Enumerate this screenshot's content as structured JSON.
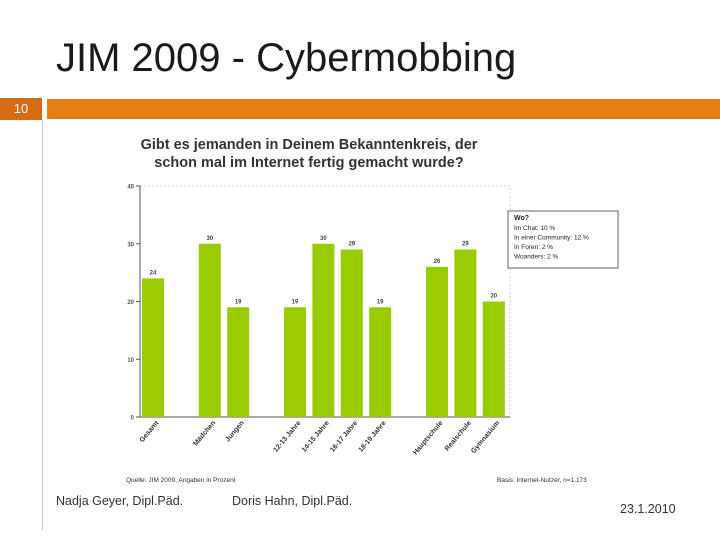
{
  "slide": {
    "title": "JIM 2009 - Cybermobbing",
    "number": "10",
    "accent_color": "#e67e16"
  },
  "footer": {
    "author1": "Nadja Geyer, Dipl.Päd.",
    "author2": "Doris Hahn, Dipl.Päd.",
    "date": "23.1.2010"
  },
  "chart_data": {
    "type": "bar",
    "title_lines": [
      "Gibt es jemanden in Deinem Bekanntenkreis, der",
      "schon mal im Internet fertig gemacht wurde?"
    ],
    "categories": [
      "Gesamt",
      "Mädchen",
      "Jungen",
      "12-13 Jahre",
      "14-15 Jahre",
      "16-17 Jahre",
      "18-19 Jahre",
      "Hauptschule",
      "Realschule",
      "Gymnasium"
    ],
    "values": [
      24,
      30,
      19,
      19,
      30,
      29,
      19,
      26,
      29,
      20
    ],
    "ylim": [
      0,
      40
    ],
    "yticks": [
      0,
      10,
      20,
      30,
      40
    ],
    "grid": false,
    "bar_color": "#99cc00",
    "legend_box": {
      "title": "Wo?",
      "lines": [
        "Im Chat: 10 %",
        "In einer Community: 12 %",
        "In Foren: 2 %",
        "Woanders: 2 %"
      ]
    },
    "source": "Quelle: JIM 2009, Angaben in Prozent",
    "basis": "Basis: Internet-Nutzer, n=1.173"
  }
}
